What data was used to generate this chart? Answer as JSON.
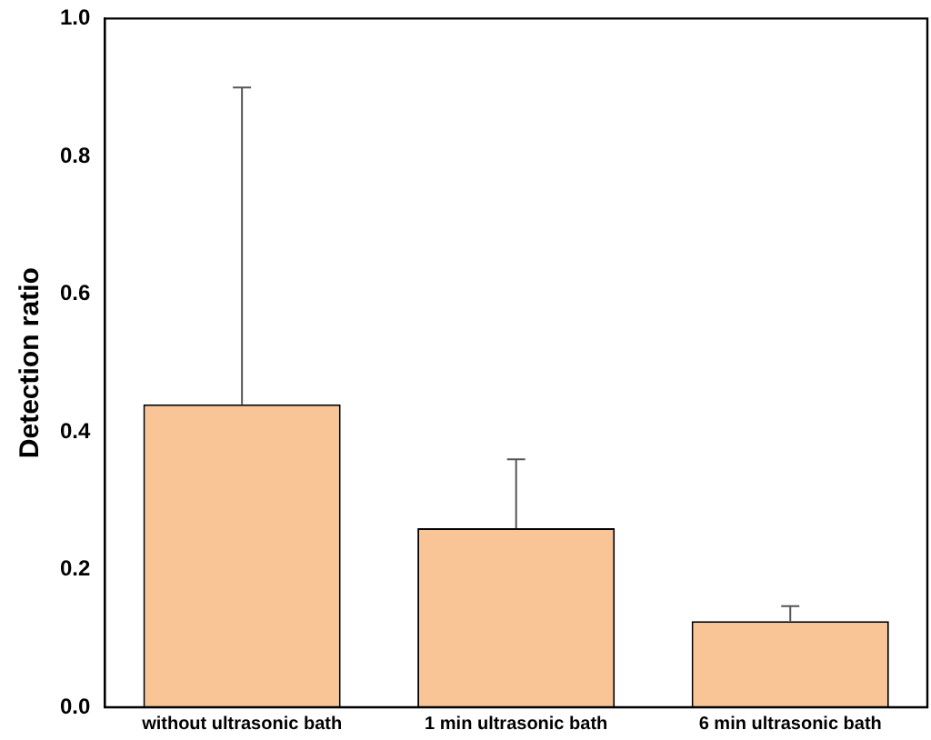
{
  "chart_data": {
    "type": "bar",
    "ylabel": "Detection ratio",
    "categories": [
      "without ultrasonic bath",
      "1 min ultrasonic bath",
      "6 min ultrasonic bath"
    ],
    "values": [
      0.44,
      0.26,
      0.125
    ],
    "color": "#f9c597",
    "errors": [
      [
        0.44,
        0.9
      ],
      [
        0.26,
        0.36
      ],
      [
        0.125,
        0.147
      ]
    ],
    "ylim": [
      0,
      1
    ],
    "yticks": [
      {
        "value": 0,
        "label": "0.0"
      },
      {
        "value": 0.2,
        "label": "0.2"
      },
      {
        "value": 0.4,
        "label": "0.4"
      },
      {
        "value": 0.6,
        "label": "0.6"
      },
      {
        "value": 0.8,
        "label": "0.8"
      },
      {
        "value": 1,
        "label": "1.0"
      }
    ],
    "grid": false,
    "legend": false
  }
}
